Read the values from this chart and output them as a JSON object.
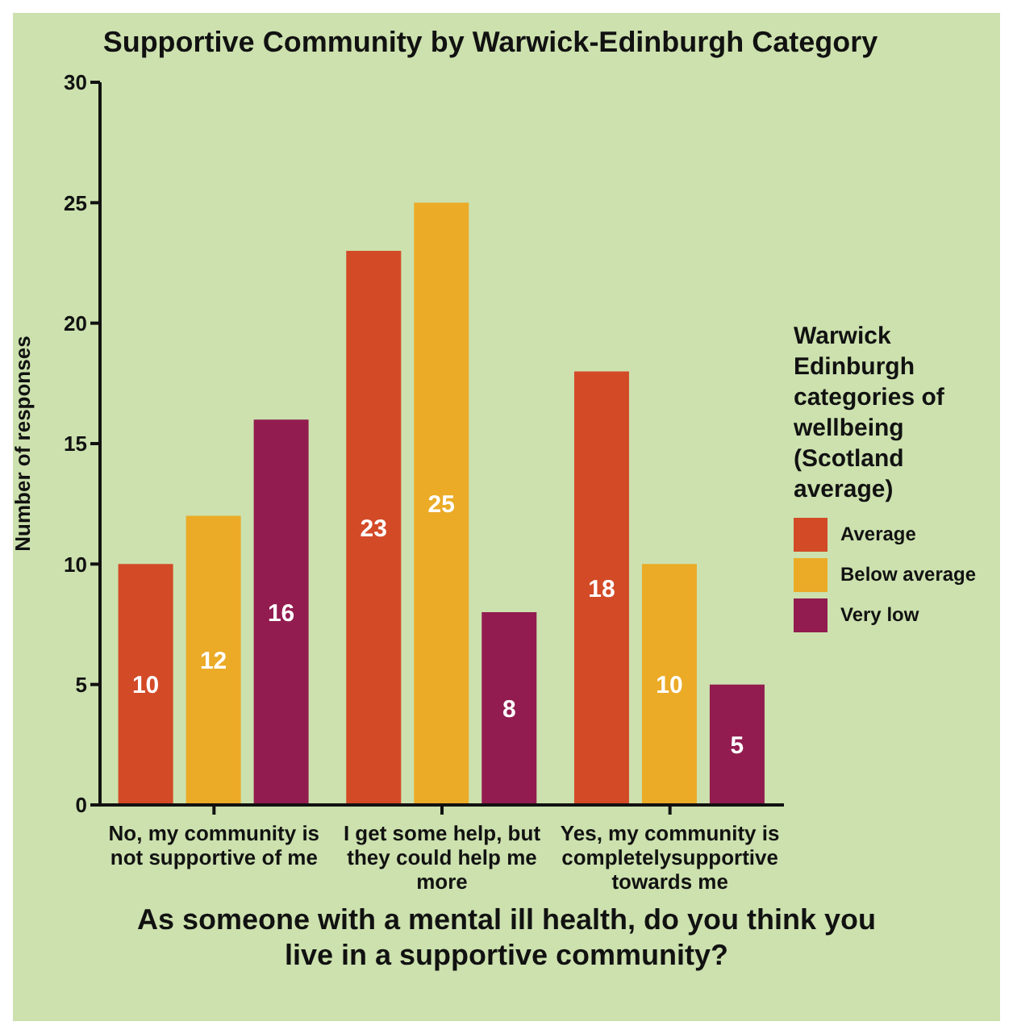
{
  "chart_data": {
    "type": "bar",
    "title": "Supportive Community by Warwick-Edinburgh Category",
    "xlabel": "As someone with a mental ill health, do you think you live in a supportive community?",
    "ylabel": "Number of responses",
    "legend_title": "Warwick Edinburgh categories of wellbeing (Scotland average)",
    "categories": [
      "No, my community is not supportive of me",
      "I get some help, but they could help me more",
      "Yes, my community is completelysupportive towards me"
    ],
    "series": [
      {
        "name": "Average",
        "color": "#d34a27",
        "values": [
          10,
          23,
          18
        ]
      },
      {
        "name": "Below average",
        "color": "#ebab27",
        "values": [
          12,
          25,
          10
        ]
      },
      {
        "name": "Very low",
        "color": "#921c50",
        "values": [
          16,
          8,
          5
        ]
      }
    ],
    "ylim": [
      0,
      30
    ],
    "yticks": [
      0,
      5,
      10,
      15,
      20,
      25,
      30
    ],
    "grid": false,
    "legend": "right",
    "data_labels": true
  }
}
